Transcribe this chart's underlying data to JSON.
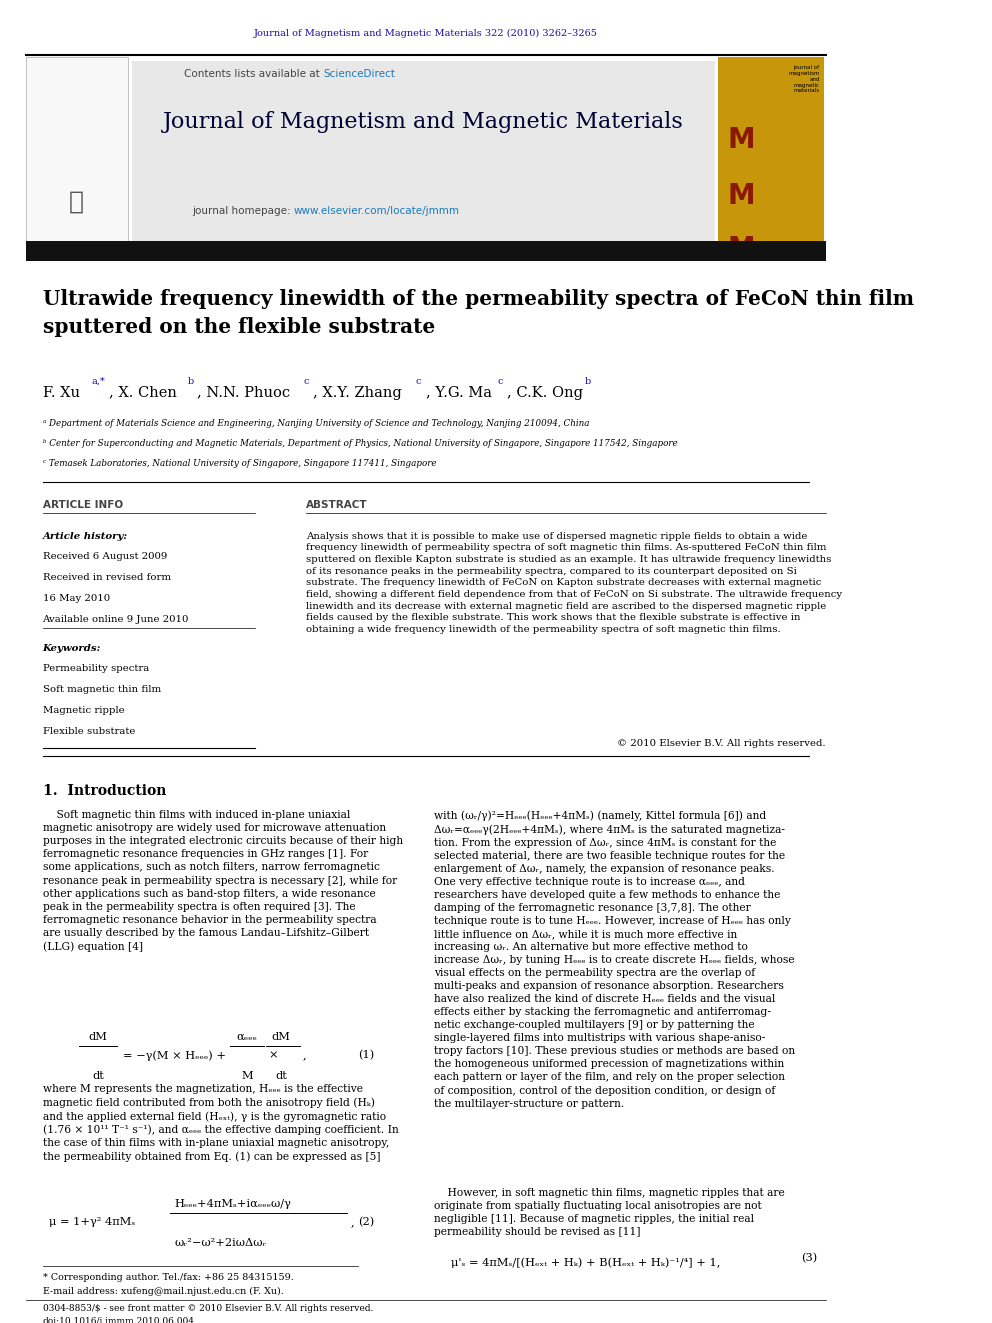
{
  "page_width": 9.92,
  "page_height": 13.23,
  "bg_color": "#ffffff",
  "journal_ref": "Journal of Magnetism and Magnetic Materials 322 (2010) 3262–3265",
  "journal_ref_color": "#1a0dab",
  "header_bg": "#e8e8e8",
  "header_journal_name": "Journal of Magnetism and Magnetic Materials",
  "header_sciencedirect_color": "#1a7abf",
  "header_url": "www.elsevier.com/locate/jmmm",
  "header_url_color": "#1a7abf",
  "title": "Ultrawide frequency linewidth of the permeability spectra of FeCoN thin film\nsputtered on the flexible substrate",
  "affil_a": "ᵃ Department of Materials Science and Engineering, Nanjing University of Science and Technology, Nanjing 210094, China",
  "affil_b": "ᵇ Center for Superconducting and Magnetic Materials, Department of Physics, National University of Singapore, Singapore 117542, Singapore",
  "affil_c": "ᶜ Temasek Laboratories, National University of Singapore, Singapore 117411, Singapore",
  "abstract_text": "Analysis shows that it is possible to make use of dispersed magnetic ripple fields to obtain a wide\nfrequency linewidth of permeability spectra of soft magnetic thin films. As-sputtered FeCoN thin film\nsputtered on flexible Kapton substrate is studied as an example. It has ultrawide frequency linewidths\nof its resonance peaks in the permeability spectra, compared to its counterpart deposited on Si\nsubstrate. The frequency linewidth of FeCoN on Kapton substrate decreases with external magnetic\nfield, showing a different field dependence from that of FeCoN on Si substrate. The ultrawide frequency\nlinewidth and its decrease with external magnetic field are ascribed to the dispersed magnetic ripple\nfields caused by the flexible substrate. This work shows that the flexible substrate is effective in\nobtaining a wide frequency linewidth of the permeability spectra of soft magnetic thin films.",
  "copyright": "© 2010 Elsevier B.V. All rights reserved.",
  "footnote_star": "* Corresponding author. Tel./fax: +86 25 84315159.",
  "footnote_email": "E-mail address: xufeng@mail.njust.edu.cn (F. Xu).",
  "footer_line1": "0304-8853/$ - see front matter © 2010 Elsevier B.V. All rights reserved.",
  "footer_line2": "doi:10.1016/j.jmmm.2010.06.004",
  "elsevier_color": "#ff6600",
  "ref_color": "#1a0dab"
}
